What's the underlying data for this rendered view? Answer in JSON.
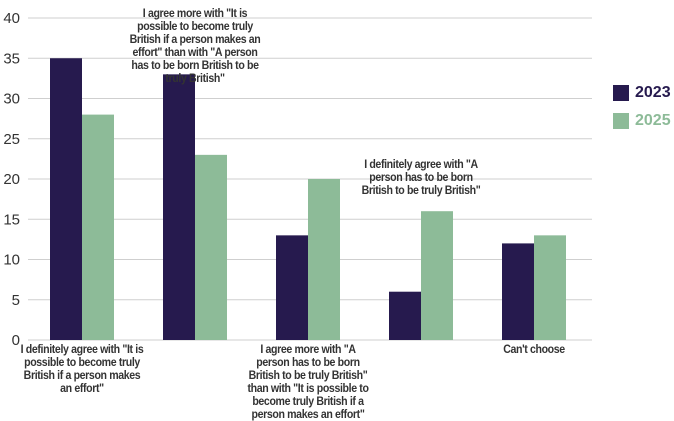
{
  "chart_data": {
    "type": "bar",
    "title": "",
    "xlabel": "",
    "ylabel": "",
    "ylim": [
      0,
      40
    ],
    "yticks": [
      0,
      5,
      10,
      15,
      20,
      25,
      30,
      35,
      40
    ],
    "grid": true,
    "legend_position": "right",
    "categories": [
      "I definitely agree with \"It is possible to become truly British if a person makes an effort\"",
      "I agree more with \"It is possible to become truly British if a person makes an effort\" than with \"A person has to be born British to be truly British\"",
      "I agree more with \"A person has to be born British to be truly British\" than with \"It is possible to become truly British if a person makes an effort\"",
      "I definitely agree with \"A person has to be born British to be truly British\"",
      "Can't choose"
    ],
    "series": [
      {
        "name": "2023",
        "color": "#261a4e",
        "values": [
          35,
          33,
          13,
          6,
          12
        ]
      },
      {
        "name": "2025",
        "color": "#8dbb98",
        "values": [
          28,
          23,
          20,
          16,
          13
        ]
      }
    ]
  }
}
